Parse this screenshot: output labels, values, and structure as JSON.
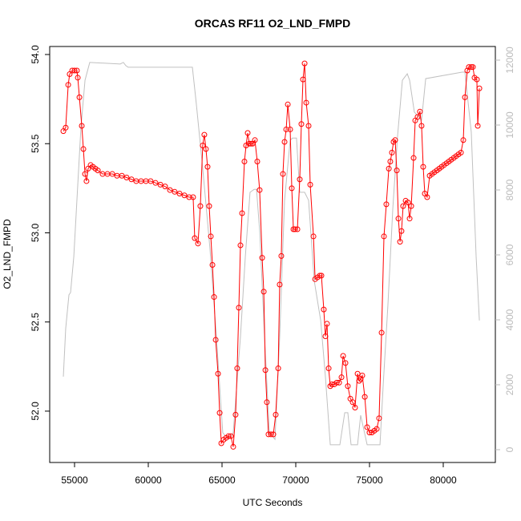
{
  "chart_data": {
    "type": "line",
    "title": "ORCAS RF11 O2_LND_FMPD",
    "x_label": "UTC Seconds",
    "y_label": "O2_LND_FMPD",
    "xlim": [
      53315,
      83533
    ],
    "xticks": [
      55000,
      60000,
      65000,
      70000,
      75000,
      80000
    ],
    "ylim": [
      51.712,
      54.045
    ],
    "yticks": [
      {
        "value": 52,
        "label": "52.0"
      },
      52.5,
      {
        "value": 53,
        "label": "53.0"
      },
      53.5,
      {
        "value": 54,
        "label": "54.0"
      }
    ],
    "y2lim": [
      -395,
      12420
    ],
    "y2ticks": [
      0,
      2000,
      4000,
      6000,
      8000,
      10000,
      12000
    ],
    "series": [
      {
        "color": "#ff0000",
        "markers": true,
        "x": [
          54240,
          54400,
          54570,
          54670,
          54840,
          55000,
          55160,
          55220,
          55330,
          55490,
          55600,
          55710,
          55810,
          55920,
          56090,
          56250,
          56410,
          56580,
          56900,
          57230,
          57560,
          57880,
          58210,
          58530,
          58860,
          59180,
          59510,
          59840,
          60160,
          60490,
          60820,
          61140,
          61470,
          61790,
          62120,
          62450,
          62770,
          63040,
          63150,
          63370,
          63530,
          63690,
          63800,
          63910,
          64020,
          64130,
          64240,
          64350,
          64460,
          64570,
          64730,
          64840,
          64950,
          65110,
          65270,
          65440,
          65600,
          65760,
          65920,
          66030,
          66140,
          66250,
          66360,
          66520,
          66630,
          66740,
          66850,
          66960,
          67070,
          67230,
          67390,
          67550,
          67720,
          67830,
          67940,
          68040,
          68150,
          68320,
          68480,
          68640,
          68810,
          68910,
          69020,
          69130,
          69240,
          69350,
          69460,
          69620,
          69730,
          69840,
          69950,
          70110,
          70270,
          70380,
          70490,
          70600,
          70710,
          70870,
          70980,
          71200,
          71310,
          71470,
          71630,
          71740,
          71900,
          72010,
          72120,
          72230,
          72340,
          72450,
          72610,
          72780,
          72940,
          73100,
          73210,
          73370,
          73530,
          73700,
          73860,
          74020,
          74190,
          74300,
          74400,
          74510,
          74680,
          74840,
          75000,
          75160,
          75330,
          75490,
          75650,
          75820,
          75980,
          76140,
          76310,
          76410,
          76520,
          76630,
          76740,
          76850,
          76960,
          77070,
          77170,
          77280,
          77450,
          77610,
          77720,
          77830,
          77990,
          78100,
          78260,
          78420,
          78530,
          78640,
          78750,
          78910,
          79080,
          79240,
          79400,
          79570,
          79730,
          79890,
          80050,
          80220,
          80380,
          80540,
          80710,
          80870,
          81030,
          81200,
          81360,
          81470,
          81630,
          81740,
          81900,
          82010,
          82120,
          82280,
          82340,
          82450
        ],
        "values": [
          53.57,
          53.59,
          53.83,
          53.89,
          53.91,
          53.91,
          53.91,
          53.87,
          53.76,
          53.6,
          53.47,
          53.33,
          53.29,
          53.36,
          53.38,
          53.37,
          53.36,
          53.35,
          53.33,
          53.33,
          53.33,
          53.32,
          53.32,
          53.31,
          53.3,
          53.29,
          53.29,
          53.29,
          53.29,
          53.28,
          53.27,
          53.26,
          53.24,
          53.23,
          53.22,
          53.21,
          53.2,
          53.2,
          52.97,
          52.94,
          53.15,
          53.49,
          53.55,
          53.47,
          53.37,
          53.15,
          52.98,
          52.82,
          52.64,
          52.4,
          52.21,
          51.99,
          51.82,
          51.84,
          51.85,
          51.86,
          51.86,
          51.8,
          51.98,
          52.24,
          52.58,
          52.93,
          53.11,
          53.4,
          53.49,
          53.56,
          53.5,
          53.5,
          53.5,
          53.52,
          53.4,
          53.24,
          52.86,
          52.67,
          52.23,
          52.05,
          51.87,
          51.87,
          51.87,
          51.98,
          52.24,
          52.71,
          52.87,
          53.33,
          53.51,
          53.58,
          53.72,
          53.58,
          53.25,
          53.02,
          53.02,
          53.02,
          53.3,
          53.61,
          53.86,
          53.95,
          53.73,
          53.6,
          53.27,
          52.98,
          52.74,
          52.75,
          52.76,
          52.76,
          52.57,
          52.42,
          52.49,
          52.24,
          52.14,
          52.15,
          52.15,
          52.16,
          52.16,
          52.19,
          52.31,
          52.27,
          52.14,
          52.07,
          52.05,
          52.02,
          52.21,
          52.17,
          52.18,
          52.2,
          52.08,
          51.91,
          51.88,
          51.88,
          51.89,
          51.9,
          51.96,
          52.44,
          52.98,
          53.16,
          53.36,
          53.4,
          53.45,
          53.51,
          53.52,
          53.35,
          53.08,
          52.95,
          53.01,
          53.15,
          53.18,
          53.17,
          53.08,
          53.15,
          53.42,
          53.63,
          53.65,
          53.68,
          53.6,
          53.37,
          53.22,
          53.2,
          53.32,
          53.33,
          53.34,
          53.35,
          53.36,
          53.37,
          53.38,
          53.39,
          53.4,
          53.41,
          53.42,
          53.43,
          53.44,
          53.45,
          53.52,
          53.76,
          53.91,
          53.93,
          53.93,
          53.93,
          53.87,
          53.86,
          53.6,
          53.81
        ]
      },
      {
        "color": "#c0c0c0",
        "axis": "y2",
        "markers": false,
        "x": [
          54240,
          54400,
          54620,
          54730,
          54950,
          55160,
          55430,
          55710,
          56030,
          58100,
          58310,
          58480,
          58640,
          62990,
          63260,
          63690,
          64180,
          64620,
          65050,
          65440,
          65760,
          66250,
          66580,
          66900,
          67180,
          67340,
          67560,
          67880,
          68210,
          68590,
          68910,
          69240,
          69620,
          69780,
          70050,
          70270,
          70600,
          70870,
          71250,
          71690,
          72010,
          72340,
          72990,
          73320,
          73530,
          73750,
          74190,
          74400,
          74840,
          75710,
          75930,
          76250,
          76580,
          76900,
          77230,
          77560,
          77720,
          78040,
          78530,
          78810,
          81280,
          81470,
          81900,
          82230,
          82450
        ],
        "values": [
          2250,
          3730,
          4770,
          4840,
          5950,
          7680,
          9900,
          11380,
          11930,
          11880,
          11930,
          11830,
          11780,
          11780,
          10640,
          8670,
          6200,
          3480,
          520,
          320,
          520,
          3480,
          5950,
          7930,
          8020,
          8020,
          6690,
          3480,
          520,
          320,
          3480,
          7680,
          9530,
          9600,
          9600,
          7930,
          7930,
          7680,
          5210,
          3980,
          2250,
          150,
          150,
          1140,
          1140,
          150,
          150,
          1060,
          150,
          150,
          2000,
          4470,
          7430,
          9650,
          11380,
          11580,
          11380,
          10400,
          10150,
          11430,
          11630,
          11630,
          9780,
          5950,
          3980
        ]
      }
    ]
  }
}
